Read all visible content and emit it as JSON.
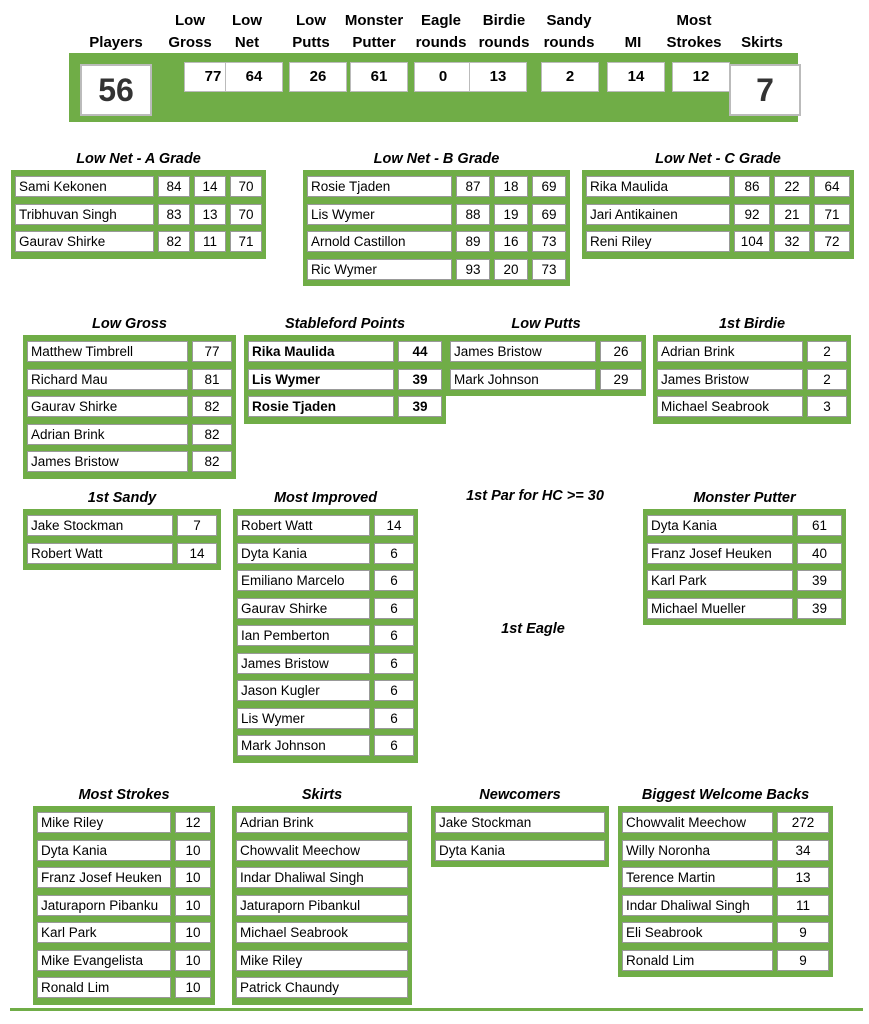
{
  "summary": {
    "headers": [
      "Players",
      "Low Gross",
      "Low Net",
      "Low Putts",
      "Monster Putter",
      "Eagle rounds",
      "Birdie rounds",
      "Sandy rounds",
      "MI",
      "Most Strokes",
      "Skirts"
    ],
    "values": [
      56,
      77,
      64,
      26,
      61,
      0,
      13,
      2,
      14,
      12,
      7
    ]
  },
  "sections": [
    {
      "title": "Low Net - A Grade",
      "rows": [
        [
          "Sami Kekonen",
          84,
          14,
          70
        ],
        [
          "Tribhuvan Singh",
          83,
          13,
          70
        ],
        [
          "Gaurav Shirke",
          82,
          11,
          71
        ]
      ]
    },
    {
      "title": "Low Net - B Grade",
      "rows": [
        [
          "Rosie Tjaden",
          87,
          18,
          69
        ],
        [
          "Lis Wymer",
          88,
          19,
          69
        ],
        [
          "Arnold Castillon",
          89,
          16,
          73
        ],
        [
          "Ric Wymer",
          93,
          20,
          73
        ]
      ]
    },
    {
      "title": "Low Net - C Grade",
      "rows": [
        [
          "Rika Maulida",
          86,
          22,
          64
        ],
        [
          "Jari Antikainen",
          92,
          21,
          71
        ],
        [
          "Reni Riley",
          104,
          32,
          72
        ]
      ]
    },
    {
      "title": "Low Gross",
      "rows": [
        [
          "Matthew Timbrell",
          77
        ],
        [
          "Richard Mau",
          81
        ],
        [
          "Gaurav Shirke",
          82
        ],
        [
          "Adrian Brink",
          82
        ],
        [
          "James Bristow",
          82
        ]
      ]
    },
    {
      "title": "Stableford Points",
      "rows": [
        [
          "Rika Maulida",
          44
        ],
        [
          "Lis Wymer",
          39
        ],
        [
          "Rosie Tjaden",
          39
        ]
      ]
    },
    {
      "title": "Low Putts",
      "rows": [
        [
          "James Bristow",
          26
        ],
        [
          "Mark Johnson",
          29
        ]
      ]
    },
    {
      "title": "1st Birdie",
      "rows": [
        [
          "Adrian Brink",
          2
        ],
        [
          "James Bristow",
          2
        ],
        [
          "Michael Seabrook",
          3
        ]
      ]
    },
    {
      "title": "1st Sandy",
      "rows": [
        [
          "Jake Stockman",
          7
        ],
        [
          "Robert Watt",
          14
        ]
      ]
    },
    {
      "title": "Most Improved",
      "rows": [
        [
          "Robert Watt",
          14
        ],
        [
          "Dyta Kania",
          6
        ],
        [
          "Emiliano Marcelo",
          6
        ],
        [
          "Gaurav Shirke",
          6
        ],
        [
          "Ian Pemberton",
          6
        ],
        [
          "James Bristow",
          6
        ],
        [
          "Jason Kugler",
          6
        ],
        [
          "Lis Wymer",
          6
        ],
        [
          "Mark Johnson",
          6
        ]
      ]
    },
    {
      "title": "1st Par for HC >= 30"
    },
    {
      "title": "Monster Putter",
      "rows": [
        [
          "Dyta Kania",
          61
        ],
        [
          "Franz Josef Heuken",
          40
        ],
        [
          "Karl Park",
          39
        ],
        [
          "Michael Mueller",
          39
        ]
      ]
    },
    {
      "title": "1st Eagle"
    },
    {
      "title": "Most Strokes",
      "rows": [
        [
          "Mike Riley",
          12
        ],
        [
          "Dyta Kania",
          10
        ],
        [
          "Franz Josef Heuken",
          10
        ],
        [
          "Jaturaporn Pibanku",
          10
        ],
        [
          "Karl Park",
          10
        ],
        [
          "Mike Evangelista",
          10
        ],
        [
          "Ronald Lim",
          10
        ]
      ]
    },
    {
      "title": "Skirts",
      "rows": [
        [
          "Adrian Brink"
        ],
        [
          "Chowvalit Meechow"
        ],
        [
          "Indar Dhaliwal Singh"
        ],
        [
          "Jaturaporn Pibankul"
        ],
        [
          "Michael Seabrook"
        ],
        [
          "Mike Riley"
        ],
        [
          "Patrick Chaundy"
        ]
      ]
    },
    {
      "title": "Newcomers",
      "rows": [
        [
          "Jake Stockman"
        ],
        [
          "Dyta Kania"
        ]
      ]
    },
    {
      "title": "Biggest Welcome Backs",
      "rows": [
        [
          "Chowvalit Meechow",
          272
        ],
        [
          "Willy Noronha",
          34
        ],
        [
          "Terence Martin",
          13
        ],
        [
          "Indar Dhaliwal Singh",
          11
        ],
        [
          "Eli Seabrook",
          9
        ],
        [
          "Ronald Lim",
          9
        ]
      ]
    }
  ]
}
